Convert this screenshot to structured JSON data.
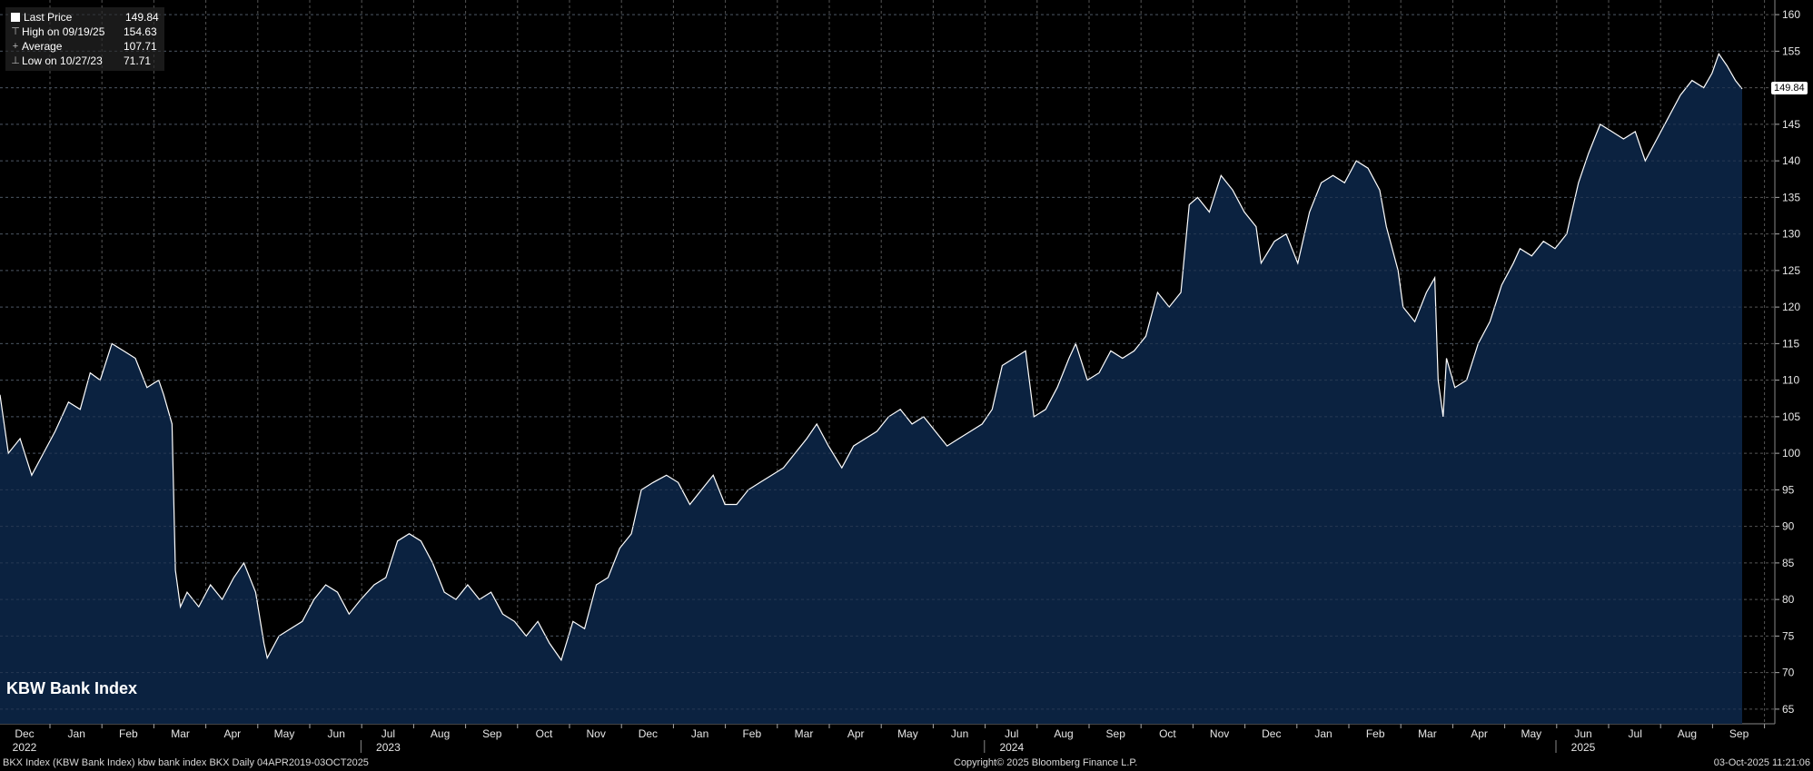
{
  "legend": [
    {
      "label": "Last Price",
      "value": "149.84"
    },
    {
      "label": "High on 09/19/25",
      "value": "154.63"
    },
    {
      "label": "Average",
      "value": "107.71"
    },
    {
      "label": "Low on 10/27/23",
      "value": "71.71"
    }
  ],
  "series_title": "KBW Bank Index",
  "last_value_tag": "149.84",
  "footer": {
    "left": "BKX Index (KBW Bank Index) kbw bank index BKX Daily 04APR2019-03OCT2025",
    "center": "Copyright© 2025 Bloomberg Finance L.P.",
    "right": "03-Oct-2025 11:21:06"
  },
  "colors": {
    "background": "#000000",
    "area_fill": "#0b2240",
    "line": "#ffffff",
    "grid": "#555555"
  },
  "chart_data": {
    "type": "area",
    "title": "KBW Bank Index",
    "ylim": [
      63,
      162
    ],
    "yticks": [
      65,
      70,
      75,
      80,
      85,
      90,
      95,
      100,
      105,
      110,
      115,
      120,
      125,
      130,
      135,
      140,
      145,
      150,
      155,
      160
    ],
    "grid": true,
    "legend_position": "top-left",
    "month_labels": [
      "Dec",
      "Jan",
      "Feb",
      "Mar",
      "Apr",
      "May",
      "Jun",
      "Jul",
      "Aug",
      "Sep",
      "Oct",
      "Nov",
      "Dec",
      "Jan",
      "Feb",
      "Mar",
      "Apr",
      "May",
      "Jun",
      "Jul",
      "Aug",
      "Sep",
      "Oct",
      "Nov",
      "Dec",
      "Jan",
      "Feb",
      "Mar",
      "Apr",
      "May",
      "Jun",
      "Jul",
      "Aug",
      "Sep"
    ],
    "year_labels": [
      {
        "month_index": 0,
        "label": "2022"
      },
      {
        "month_index": 7,
        "label": "2023"
      },
      {
        "month_index": 19,
        "label": "2024"
      },
      {
        "month_index": 30,
        "label": "2025"
      }
    ],
    "x_range": [
      "2022-11-25",
      "2025-10-03"
    ],
    "series": [
      {
        "name": "Last Price",
        "points": [
          [
            "2022-11-25",
            108
          ],
          [
            "2022-11-30",
            100
          ],
          [
            "2022-12-07",
            102
          ],
          [
            "2022-12-14",
            97
          ],
          [
            "2022-12-21",
            100
          ],
          [
            "2022-12-28",
            103
          ],
          [
            "2023-01-05",
            107
          ],
          [
            "2023-01-12",
            106
          ],
          [
            "2023-01-18",
            111
          ],
          [
            "2023-01-24",
            110
          ],
          [
            "2023-01-31",
            115
          ],
          [
            "2023-02-07",
            114
          ],
          [
            "2023-02-14",
            113
          ],
          [
            "2023-02-21",
            109
          ],
          [
            "2023-02-28",
            110
          ],
          [
            "2023-03-03",
            108
          ],
          [
            "2023-03-08",
            104
          ],
          [
            "2023-03-10",
            84
          ],
          [
            "2023-03-13",
            79
          ],
          [
            "2023-03-17",
            81
          ],
          [
            "2023-03-24",
            79
          ],
          [
            "2023-03-31",
            82
          ],
          [
            "2023-04-07",
            80
          ],
          [
            "2023-04-14",
            83
          ],
          [
            "2023-04-20",
            85
          ],
          [
            "2023-04-27",
            81
          ],
          [
            "2023-05-02",
            74
          ],
          [
            "2023-05-04",
            72
          ],
          [
            "2023-05-11",
            75
          ],
          [
            "2023-05-18",
            76
          ],
          [
            "2023-05-25",
            77
          ],
          [
            "2023-06-01",
            80
          ],
          [
            "2023-06-08",
            82
          ],
          [
            "2023-06-15",
            81
          ],
          [
            "2023-06-22",
            78
          ],
          [
            "2023-06-29",
            80
          ],
          [
            "2023-07-07",
            82
          ],
          [
            "2023-07-14",
            83
          ],
          [
            "2023-07-21",
            88
          ],
          [
            "2023-07-28",
            89
          ],
          [
            "2023-08-04",
            88
          ],
          [
            "2023-08-11",
            85
          ],
          [
            "2023-08-18",
            81
          ],
          [
            "2023-08-25",
            80
          ],
          [
            "2023-09-01",
            82
          ],
          [
            "2023-09-08",
            80
          ],
          [
            "2023-09-15",
            81
          ],
          [
            "2023-09-22",
            78
          ],
          [
            "2023-09-29",
            77
          ],
          [
            "2023-10-06",
            75
          ],
          [
            "2023-10-13",
            77
          ],
          [
            "2023-10-20",
            74
          ],
          [
            "2023-10-27",
            71.71
          ],
          [
            "2023-11-03",
            77
          ],
          [
            "2023-11-10",
            76
          ],
          [
            "2023-11-17",
            82
          ],
          [
            "2023-11-24",
            83
          ],
          [
            "2023-12-01",
            87
          ],
          [
            "2023-12-08",
            89
          ],
          [
            "2023-12-14",
            95
          ],
          [
            "2023-12-21",
            96
          ],
          [
            "2023-12-29",
            97
          ],
          [
            "2024-01-05",
            96
          ],
          [
            "2024-01-12",
            93
          ],
          [
            "2024-01-19",
            95
          ],
          [
            "2024-01-26",
            97
          ],
          [
            "2024-02-02",
            93
          ],
          [
            "2024-02-09",
            93
          ],
          [
            "2024-02-16",
            95
          ],
          [
            "2024-02-23",
            96
          ],
          [
            "2024-03-01",
            97
          ],
          [
            "2024-03-08",
            98
          ],
          [
            "2024-03-15",
            100
          ],
          [
            "2024-03-22",
            102
          ],
          [
            "2024-03-28",
            104
          ],
          [
            "2024-04-04",
            101
          ],
          [
            "2024-04-12",
            98
          ],
          [
            "2024-04-19",
            101
          ],
          [
            "2024-04-26",
            102
          ],
          [
            "2024-05-03",
            103
          ],
          [
            "2024-05-10",
            105
          ],
          [
            "2024-05-17",
            106
          ],
          [
            "2024-05-24",
            104
          ],
          [
            "2024-05-31",
            105
          ],
          [
            "2024-06-07",
            103
          ],
          [
            "2024-06-14",
            101
          ],
          [
            "2024-06-21",
            102
          ],
          [
            "2024-06-28",
            103
          ],
          [
            "2024-07-05",
            104
          ],
          [
            "2024-07-11",
            106
          ],
          [
            "2024-07-17",
            112
          ],
          [
            "2024-07-24",
            113
          ],
          [
            "2024-07-31",
            114
          ],
          [
            "2024-08-05",
            105
          ],
          [
            "2024-08-12",
            106
          ],
          [
            "2024-08-19",
            109
          ],
          [
            "2024-08-26",
            113
          ],
          [
            "2024-08-30",
            115
          ],
          [
            "2024-09-06",
            110
          ],
          [
            "2024-09-13",
            111
          ],
          [
            "2024-09-20",
            114
          ],
          [
            "2024-09-27",
            113
          ],
          [
            "2024-10-04",
            114
          ],
          [
            "2024-10-11",
            116
          ],
          [
            "2024-10-18",
            122
          ],
          [
            "2024-10-25",
            120
          ],
          [
            "2024-11-01",
            122
          ],
          [
            "2024-11-06",
            134
          ],
          [
            "2024-11-11",
            135
          ],
          [
            "2024-11-18",
            133
          ],
          [
            "2024-11-25",
            138
          ],
          [
            "2024-12-02",
            136
          ],
          [
            "2024-12-09",
            133
          ],
          [
            "2024-12-16",
            131
          ],
          [
            "2024-12-19",
            126
          ],
          [
            "2024-12-27",
            129
          ],
          [
            "2025-01-03",
            130
          ],
          [
            "2025-01-10",
            126
          ],
          [
            "2025-01-17",
            133
          ],
          [
            "2025-01-24",
            137
          ],
          [
            "2025-01-31",
            138
          ],
          [
            "2025-02-07",
            137
          ],
          [
            "2025-02-14",
            140
          ],
          [
            "2025-02-21",
            139
          ],
          [
            "2025-02-28",
            136
          ],
          [
            "2025-03-04",
            131
          ],
          [
            "2025-03-11",
            125
          ],
          [
            "2025-03-14",
            120
          ],
          [
            "2025-03-21",
            118
          ],
          [
            "2025-03-28",
            122
          ],
          [
            "2025-04-02",
            124
          ],
          [
            "2025-04-04",
            110
          ],
          [
            "2025-04-07",
            105
          ],
          [
            "2025-04-09",
            113
          ],
          [
            "2025-04-14",
            109
          ],
          [
            "2025-04-21",
            110
          ],
          [
            "2025-04-28",
            115
          ],
          [
            "2025-05-05",
            118
          ],
          [
            "2025-05-12",
            123
          ],
          [
            "2025-05-19",
            126
          ],
          [
            "2025-05-23",
            128
          ],
          [
            "2025-05-30",
            127
          ],
          [
            "2025-06-06",
            129
          ],
          [
            "2025-06-13",
            128
          ],
          [
            "2025-06-20",
            130
          ],
          [
            "2025-06-27",
            137
          ],
          [
            "2025-07-03",
            141
          ],
          [
            "2025-07-10",
            145
          ],
          [
            "2025-07-17",
            144
          ],
          [
            "2025-07-24",
            143
          ],
          [
            "2025-07-31",
            144
          ],
          [
            "2025-08-06",
            140
          ],
          [
            "2025-08-13",
            143
          ],
          [
            "2025-08-20",
            146
          ],
          [
            "2025-08-27",
            149
          ],
          [
            "2025-09-03",
            151
          ],
          [
            "2025-09-10",
            150
          ],
          [
            "2025-09-15",
            152
          ],
          [
            "2025-09-19",
            154.63
          ],
          [
            "2025-09-24",
            153
          ],
          [
            "2025-09-29",
            151
          ],
          [
            "2025-10-03",
            149.84
          ]
        ]
      }
    ]
  }
}
